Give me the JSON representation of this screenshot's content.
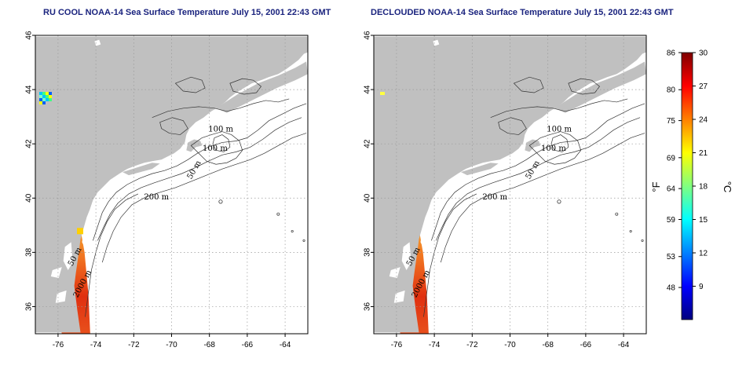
{
  "panels": [
    {
      "title": "RU COOL NOAA-14 Sea Surface Temperature July 15, 2001 22:43 GMT",
      "variant": "raw"
    },
    {
      "title": "DECLOUDED NOAA-14 Sea Surface Temperature July 15, 2001 22:43 GMT",
      "variant": "declouded"
    }
  ],
  "map": {
    "lon_range": [
      -77.2,
      -62.8
    ],
    "lat_range": [
      35,
      46
    ],
    "x_ticks": [
      "-76",
      "-74",
      "-72",
      "-70",
      "-68",
      "-66",
      "-64"
    ],
    "y_ticks": [
      "36",
      "38",
      "40",
      "42",
      "44",
      "46"
    ],
    "grid": "dotted",
    "land_color": "#c0c0c0",
    "contour_labels": [
      "100 m",
      "100 m",
      "50 m",
      "200 m",
      "50 m",
      "2000 m"
    ]
  },
  "colorbar": {
    "fahrenheit_label": "°F",
    "celsius_label": "°C",
    "fahrenheit_ticks": [
      "86",
      "80",
      "75",
      "69",
      "64",
      "59",
      "53",
      "48"
    ],
    "celsius_ticks": [
      "30",
      "27",
      "24",
      "21",
      "18",
      "15",
      "12",
      "9"
    ],
    "celsius_range": [
      6,
      30
    ],
    "colors": [
      "#00007f",
      "#0000ff",
      "#0080ff",
      "#00ffff",
      "#80ff80",
      "#ffff00",
      "#ff8000",
      "#ff0000",
      "#7f0000"
    ]
  }
}
